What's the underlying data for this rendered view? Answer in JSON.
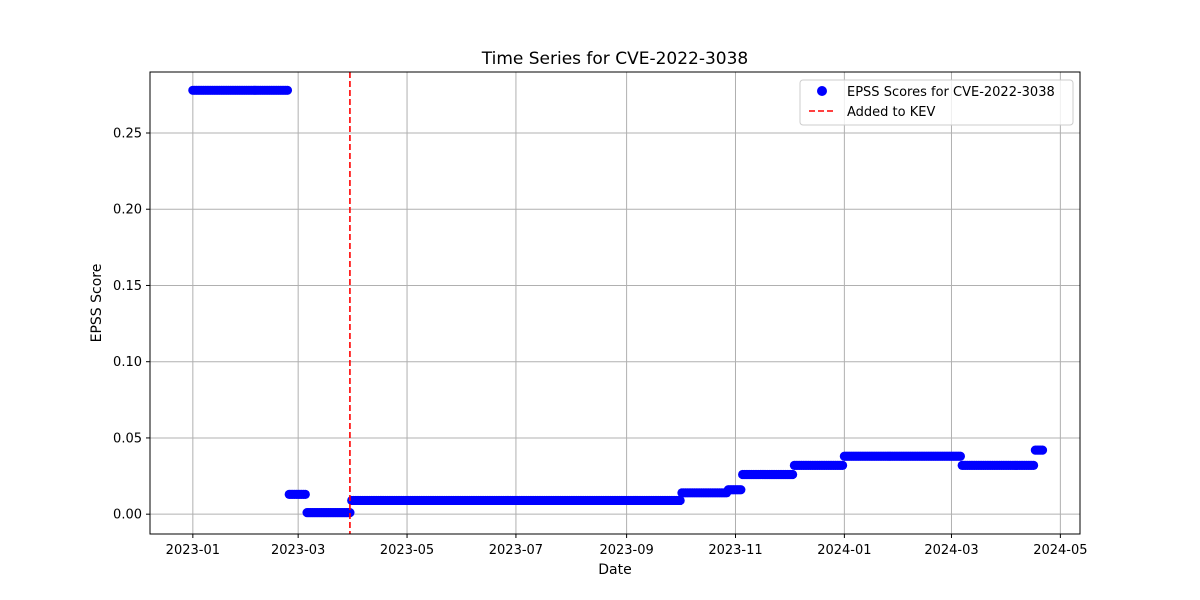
{
  "chart_data": {
    "type": "scatter",
    "title": "Time Series for CVE-2022-3038",
    "xlabel": "Date",
    "ylabel": "EPSS Score",
    "xlim": [
      "2022-12-08",
      "2024-05-12"
    ],
    "ylim": [
      -0.013,
      0.29
    ],
    "x_ticks": [
      "2023-01",
      "2023-03",
      "2023-05",
      "2023-07",
      "2023-09",
      "2023-11",
      "2024-01",
      "2024-03",
      "2024-05"
    ],
    "y_ticks": [
      "0.00",
      "0.05",
      "0.10",
      "0.15",
      "0.20",
      "0.25"
    ],
    "grid": true,
    "legend_position": "top-right",
    "series": [
      {
        "name": "EPSS Scores for CVE-2022-3038",
        "color": "#0000ff",
        "marker": "circle",
        "segments": [
          {
            "start": "2023-01-01",
            "end": "2023-02-23",
            "value": 0.278
          },
          {
            "start": "2023-02-24",
            "end": "2023-03-05",
            "value": 0.013
          },
          {
            "start": "2023-03-06",
            "end": "2023-03-30",
            "value": 0.001
          },
          {
            "start": "2023-03-31",
            "end": "2023-10-01",
            "value": 0.009
          },
          {
            "start": "2023-10-02",
            "end": "2023-10-27",
            "value": 0.014
          },
          {
            "start": "2023-10-28",
            "end": "2023-11-04",
            "value": 0.016
          },
          {
            "start": "2023-11-05",
            "end": "2023-12-03",
            "value": 0.026
          },
          {
            "start": "2023-12-04",
            "end": "2023-12-31",
            "value": 0.032
          },
          {
            "start": "2024-01-01",
            "end": "2024-03-06",
            "value": 0.038
          },
          {
            "start": "2024-03-07",
            "end": "2024-04-16",
            "value": 0.032
          },
          {
            "start": "2024-04-17",
            "end": "2024-04-21",
            "value": 0.042
          }
        ]
      },
      {
        "name": "Added to KEV",
        "color": "#ff0000",
        "style": "dashed-vertical-line",
        "x": "2023-03-30"
      }
    ]
  }
}
